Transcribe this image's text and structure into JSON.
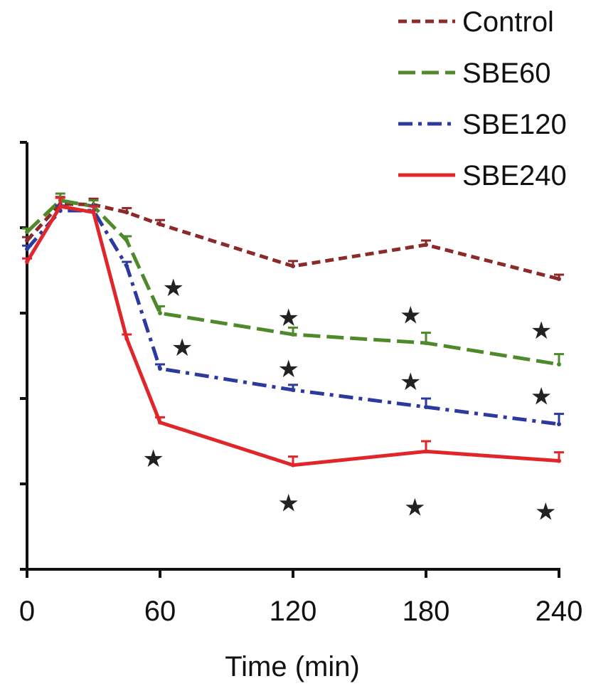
{
  "chart_data": {
    "type": "line",
    "title": "",
    "xlabel": "Time (min)",
    "ylabel": "",
    "x": [
      0,
      15,
      30,
      45,
      60,
      120,
      180,
      240
    ],
    "xticks": [
      "0",
      "60",
      "120",
      "180",
      "240"
    ],
    "xtick_values": [
      0,
      60,
      120,
      180,
      240
    ],
    "xlim": [
      0,
      240
    ],
    "ylim": [
      0,
      5
    ],
    "yticks": [
      0,
      1,
      2,
      3,
      4,
      5
    ],
    "grid": false,
    "legend_position": "top-right",
    "series": [
      {
        "name": "Control",
        "color": "#8b2a2a",
        "dash": "short-dash",
        "values": [
          3.85,
          4.28,
          4.27,
          4.18,
          4.04,
          3.55,
          3.8,
          3.4
        ],
        "errors": [
          0.04,
          0.08,
          0.07,
          0.05,
          0.05,
          0.06,
          0.05,
          0.05
        ]
      },
      {
        "name": "SBE60",
        "color": "#4f8a2a",
        "dash": "long-dash",
        "values": [
          3.95,
          4.32,
          4.25,
          3.85,
          3.0,
          2.75,
          2.65,
          2.4
        ],
        "errors": [
          0.04,
          0.08,
          0.07,
          0.05,
          0.08,
          0.08,
          0.12,
          0.12
        ]
      },
      {
        "name": "SBE120",
        "color": "#2c3aa0",
        "dash": "dash-dot",
        "values": [
          3.75,
          4.2,
          4.2,
          3.55,
          2.35,
          2.1,
          1.9,
          1.7
        ],
        "errors": [
          0.04,
          0.06,
          0.06,
          0.05,
          0.05,
          0.06,
          0.1,
          0.12
        ]
      },
      {
        "name": "SBE240",
        "color": "#e0262a",
        "dash": "solid",
        "values": [
          3.6,
          4.25,
          4.18,
          2.7,
          1.72,
          1.22,
          1.38,
          1.27
        ],
        "errors": [
          0.04,
          0.1,
          0.07,
          0.05,
          0.06,
          0.1,
          0.12,
          0.1
        ]
      }
    ],
    "annotations": [
      {
        "text": "★",
        "x": 66,
        "y": 3.3
      },
      {
        "text": "★",
        "x": 70,
        "y": 2.6
      },
      {
        "text": "★",
        "x": 57,
        "y": 1.3
      },
      {
        "text": "★",
        "x": 118,
        "y": 2.95
      },
      {
        "text": "★",
        "x": 118,
        "y": 2.35
      },
      {
        "text": "★",
        "x": 118,
        "y": 0.78
      },
      {
        "text": "★",
        "x": 173,
        "y": 2.98
      },
      {
        "text": "★",
        "x": 173,
        "y": 2.2
      },
      {
        "text": "★",
        "x": 175,
        "y": 0.73
      },
      {
        "text": "★",
        "x": 232,
        "y": 2.8
      },
      {
        "text": "★",
        "x": 232,
        "y": 2.03
      },
      {
        "text": "★",
        "x": 234,
        "y": 0.68
      }
    ]
  }
}
